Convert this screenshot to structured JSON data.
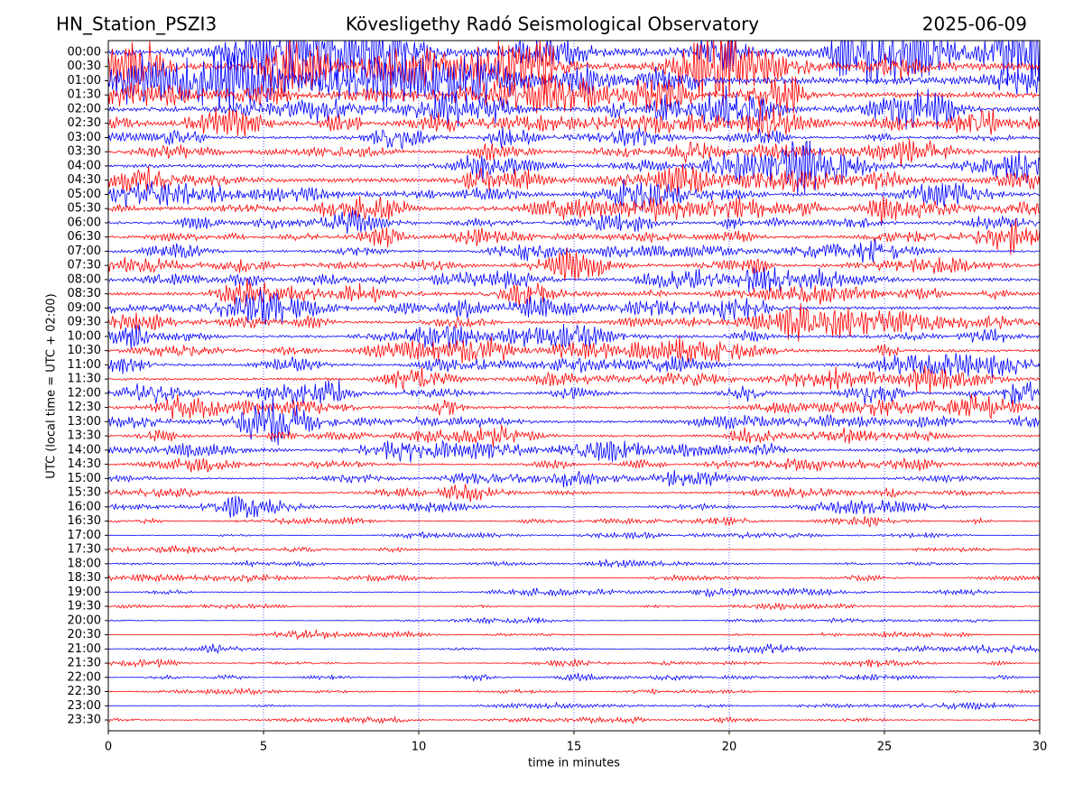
{
  "chart_data": {
    "type": "seismogram",
    "station": "HN_Station_PSZI3",
    "title": "Kövesligethy Radó Seismological Observatory",
    "date": "2025-06-09",
    "xlabel": "time in minutes",
    "ylabel": "UTC (local time = UTC + 02:00)",
    "xlim": [
      0,
      30
    ],
    "xticks": [
      0,
      5,
      10,
      15,
      20,
      25,
      30
    ],
    "grid": true,
    "colors": [
      "#0000ff",
      "#ff0000"
    ],
    "categories": [
      "00:00",
      "00:30",
      "01:00",
      "01:30",
      "02:00",
      "02:30",
      "03:00",
      "03:30",
      "04:00",
      "04:30",
      "05:00",
      "05:30",
      "06:00",
      "06:30",
      "07:00",
      "07:30",
      "08:00",
      "08:30",
      "09:00",
      "09:30",
      "10:00",
      "10:30",
      "11:00",
      "11:30",
      "12:00",
      "12:30",
      "13:00",
      "13:30",
      "14:00",
      "14:30",
      "15:00",
      "15:30",
      "16:00",
      "16:30",
      "17:00",
      "17:30",
      "18:00",
      "18:30",
      "19:00",
      "19:30",
      "20:00",
      "20:30",
      "21:00",
      "21:30",
      "22:00",
      "22:30",
      "23:00",
      "23:30"
    ],
    "values": [
      1.6,
      1.4,
      1.3,
      1.1,
      0.9,
      0.8,
      0.5,
      0.5,
      0.7,
      0.8,
      0.7,
      0.7,
      0.5,
      0.5,
      0.4,
      0.5,
      0.6,
      0.6,
      0.6,
      0.5,
      0.5,
      0.5,
      0.5,
      0.5,
      0.5,
      0.5,
      0.5,
      0.4,
      0.5,
      0.3,
      0.3,
      0.3,
      0.25,
      0.2,
      0.15,
      0.15,
      0.15,
      0.15,
      0.15,
      0.12,
      0.1,
      0.12,
      0.15,
      0.15,
      0.15,
      0.12,
      0.12,
      0.15
    ]
  }
}
